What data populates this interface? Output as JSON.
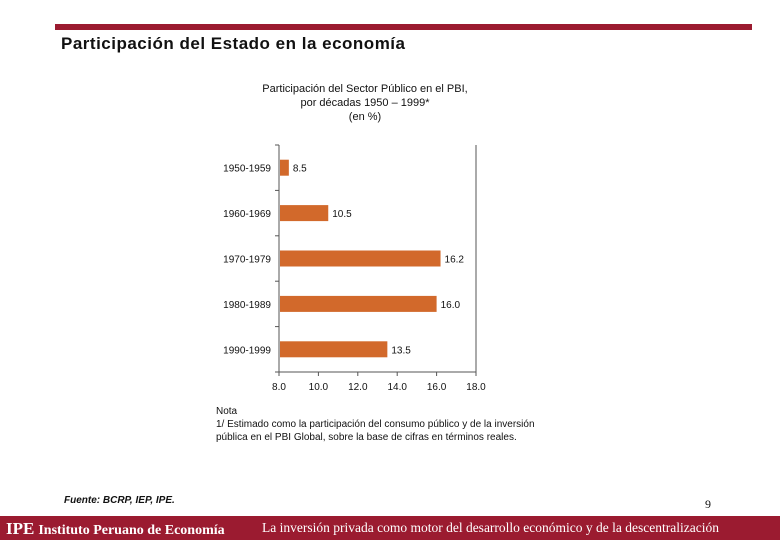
{
  "slide": {
    "title": "Participación del Estado en la economía",
    "accent_color": "#9B1B30",
    "page_number": "9"
  },
  "chart_data": {
    "type": "bar",
    "orientation": "horizontal",
    "title_lines": [
      "Participación del Sector Público en el PBI,",
      "por décadas 1950 – 1999*",
      "(en %)"
    ],
    "categories": [
      "1950-1959",
      "1960-1969",
      "1970-1979",
      "1980-1989",
      "1990-1999"
    ],
    "values": [
      8.5,
      10.5,
      16.2,
      16.0,
      13.5
    ],
    "value_labels": [
      "8.5",
      "10.5",
      "16.2",
      "16.0",
      "13.5"
    ],
    "xlim": [
      8.0,
      18.0
    ],
    "ticks": [
      8.0,
      10.0,
      12.0,
      14.0,
      16.0,
      18.0
    ],
    "tick_labels": [
      "8.0",
      "10.0",
      "12.0",
      "14.0",
      "16.0",
      "18.0"
    ],
    "bar_color": "#D2692B",
    "grid": false
  },
  "note": {
    "heading": "Nota",
    "lines": [
      "1/ Estimado como la participación del consumo público y de la inversión",
      "pública en el PBI Global, sobre la base de cifras en términos reales."
    ]
  },
  "source": "Fuente: BCRP, IEP, IPE.",
  "footer": {
    "brand": "IPE",
    "org_name": "Instituto Peruano de Economía",
    "tagline": "La inversión privada como motor del desarrollo económico y de la descentralización"
  }
}
